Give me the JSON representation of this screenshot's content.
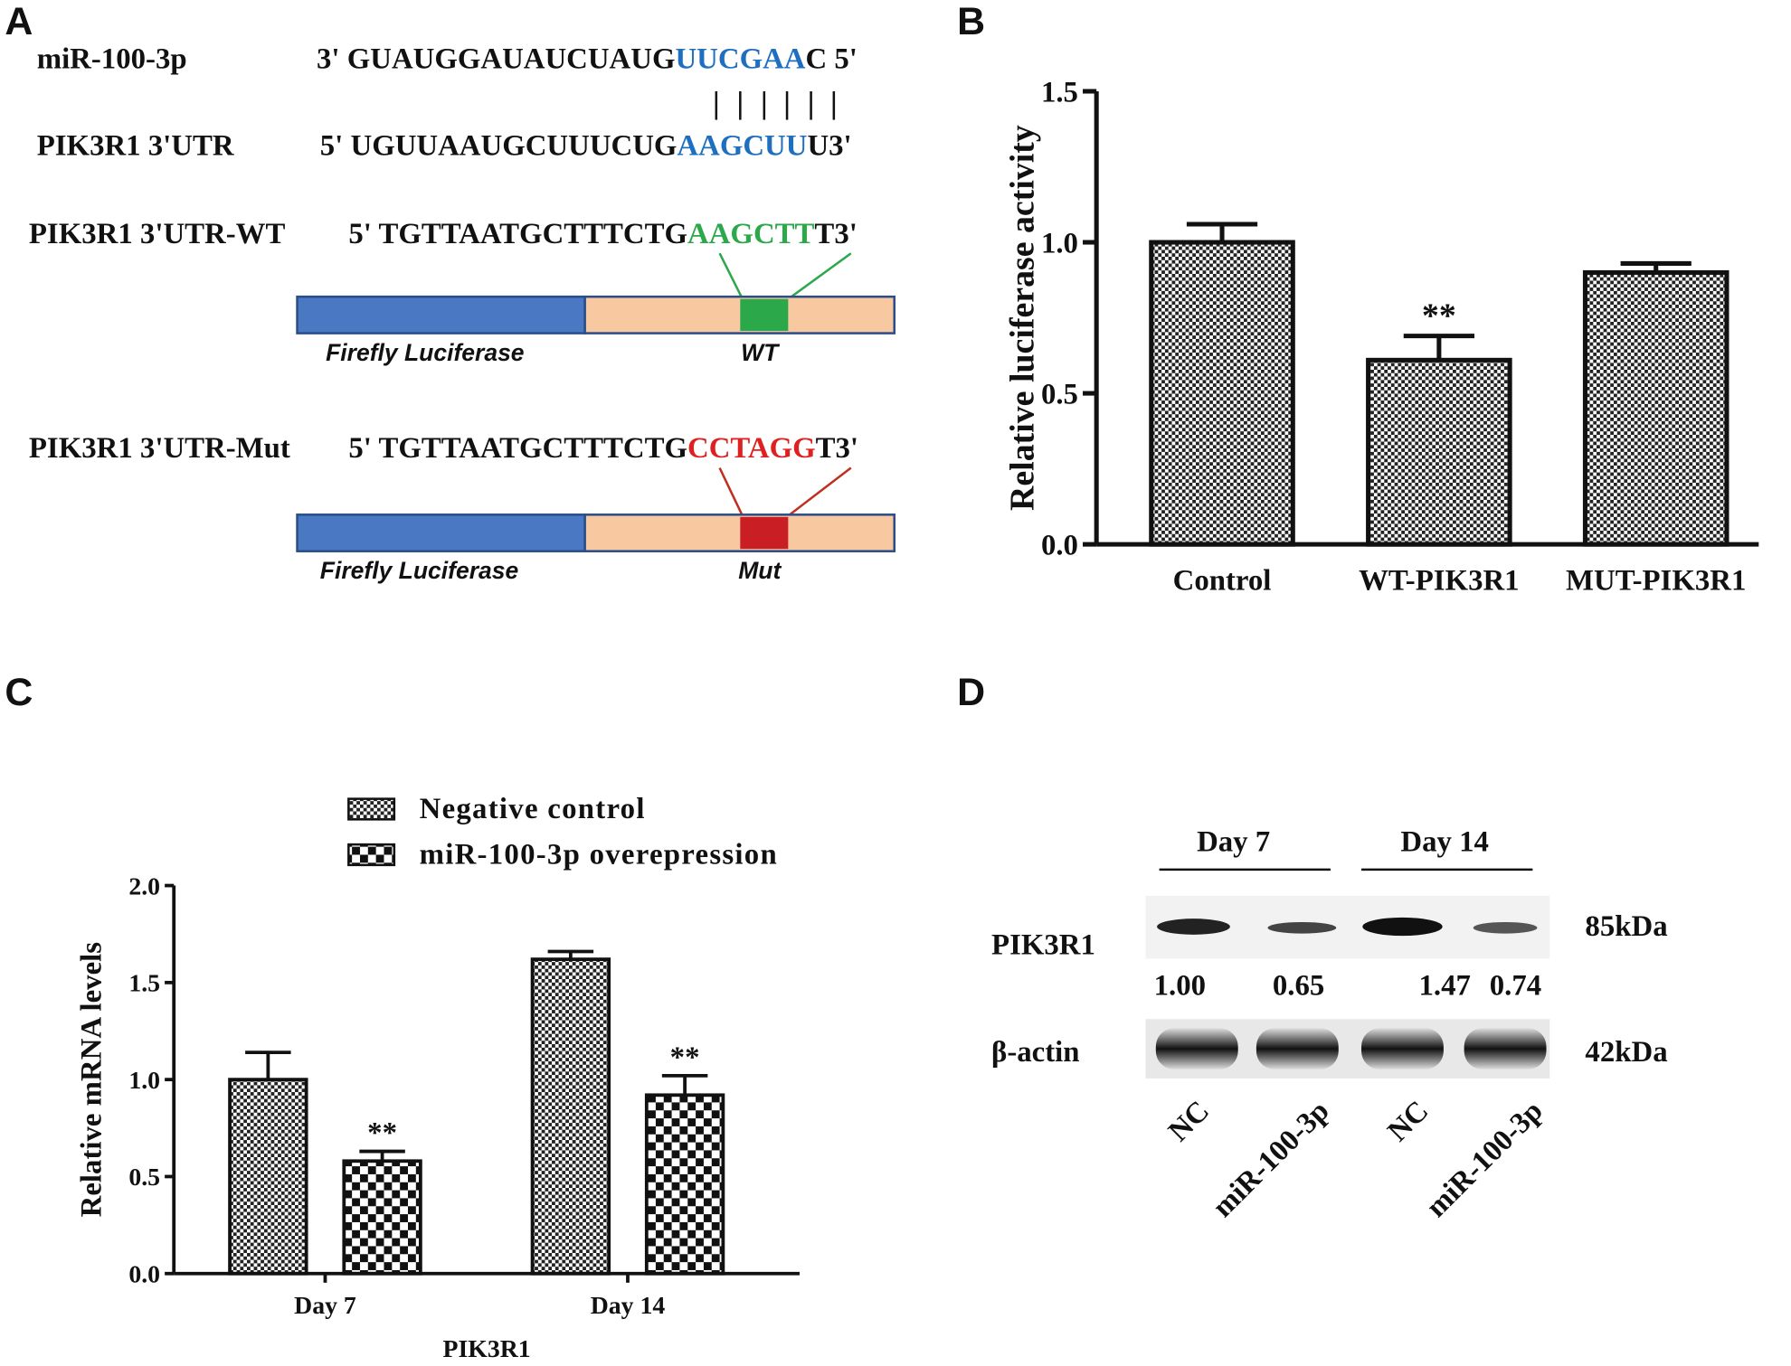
{
  "panel_labels": [
    "A",
    "B",
    "C",
    "D"
  ],
  "diagram": {
    "rows": [
      {
        "label": "miR-100-3p",
        "sequence": [
          "3' GUAUGGAUAUCUAUG",
          "UUCGAA",
          "C 5'"
        ]
      },
      {
        "label": "PIK3R1 3'UTR",
        "sequence": [
          "5' UGUUAAUGCUUUCUG",
          "AAGCUU",
          "U3'"
        ]
      },
      {
        "label": "PIK3R1 3'UTR-WT",
        "sequence": [
          "5' TGTTAATGCTTTCTG",
          "AAGCTT",
          "T3'"
        ],
        "construct": [
          "Firefly Luciferase",
          "WT"
        ]
      },
      {
        "label": "PIK3R1 3'UTR-Mut",
        "sequence": [
          "5' TGTTAATGCTTTCTG",
          "CCTAGG",
          "T3'"
        ],
        "construct": [
          "Firefly Luciferase",
          "Mut"
        ]
      }
    ]
  },
  "chart_data": [
    {
      "type": "bar",
      "ylabel": "Relative luciferase activity",
      "categories": [
        "Control",
        "WT-PIK3R1",
        "MUT-PIK3R1"
      ],
      "values": [
        1.0,
        0.61,
        0.9
      ],
      "errors": [
        0.06,
        0.08,
        0.03
      ],
      "significance": [
        null,
        "**",
        null
      ],
      "pattern": "fine",
      "ylim": [
        0,
        1.5
      ],
      "yticks": [
        {
          "value": 0,
          "label": "0.0"
        },
        {
          "value": 0.5,
          "label": "0.5"
        },
        {
          "value": 1,
          "label": "1.0"
        },
        {
          "value": 1.5,
          "label": "1.5"
        }
      ]
    },
    {
      "type": "grouped_bar",
      "ylabel": "Relative mRNA levels",
      "xlabel": "PIK3R1",
      "categories": [
        "Day 7",
        "Day 14"
      ],
      "series": [
        {
          "name": "Negative control",
          "pattern": "fine",
          "values": [
            1.0,
            1.62
          ],
          "errors": [
            0.14,
            0.04
          ],
          "significance": [
            null,
            null
          ]
        },
        {
          "name": "miR-100-3p overepression",
          "pattern": "coarse",
          "values": [
            0.58,
            0.92
          ],
          "errors": [
            0.05,
            0.1
          ],
          "significance": [
            "**",
            "**"
          ]
        }
      ],
      "ylim": [
        0,
        2
      ],
      "yticks": [
        {
          "value": 0,
          "label": "0.0"
        },
        {
          "value": 0.5,
          "label": "0.5"
        },
        {
          "value": 1,
          "label": "1.0"
        },
        {
          "value": 1.5,
          "label": "1.5"
        },
        {
          "value": 2,
          "label": "2.0"
        }
      ]
    }
  ],
  "blot": {
    "groups": [
      "Day 7",
      "Day 14"
    ],
    "rows": [
      "PIK3R1",
      "β-actin"
    ],
    "sizes": [
      "85kDa",
      "42kDa"
    ],
    "quantification": [
      "1.00",
      "0.65",
      "1.47",
      "0.74"
    ],
    "lanes": [
      "NC",
      "miR-100-3p",
      "NC",
      "miR-100-3p"
    ]
  }
}
